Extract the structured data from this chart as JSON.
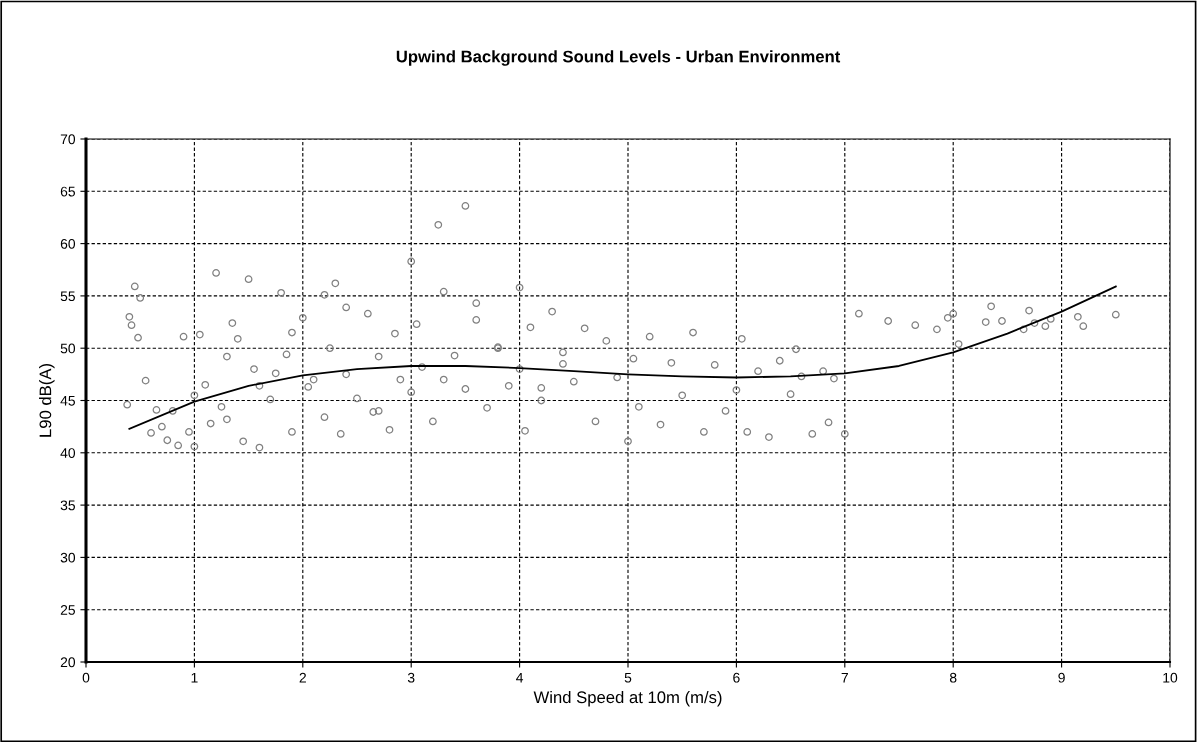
{
  "chart_data": {
    "type": "scatter",
    "title": "Upwind Background Sound Levels - Urban Environment",
    "xlabel": "Wind Speed at 10m (m/s)",
    "ylabel": "L90 dB(A)",
    "xlim": [
      0,
      10
    ],
    "xticks": [
      0,
      1,
      2,
      3,
      4,
      5,
      6,
      7,
      8,
      9,
      10
    ],
    "ylim": [
      20,
      70
    ],
    "yticks": [
      20,
      25,
      30,
      35,
      40,
      45,
      50,
      55,
      60,
      65,
      70
    ],
    "grid": true,
    "legend": false,
    "series": [
      {
        "marker": "circle",
        "color": "#808080",
        "x": [
          0.38,
          0.4,
          0.42,
          0.45,
          0.48,
          0.5,
          0.55,
          0.6,
          0.65,
          0.7,
          0.75,
          0.8,
          0.85,
          0.9,
          0.95,
          1.0,
          1.05,
          1.1,
          1.15,
          1.2,
          1.25,
          1.3,
          1.35,
          1.4,
          1.45,
          1.5,
          1.55,
          1.6,
          1.7,
          1.75,
          1.8,
          1.85,
          1.9,
          2.0,
          2.05,
          2.1,
          2.2,
          2.25,
          2.3,
          2.35,
          2.4,
          2.5,
          2.6,
          2.65,
          2.7,
          2.8,
          2.85,
          2.9,
          3.0,
          3.0,
          3.05,
          3.1,
          3.2,
          3.25,
          3.3,
          3.4,
          3.5,
          3.5,
          3.6,
          3.7,
          3.8,
          3.9,
          4.0,
          4.0,
          4.05,
          4.1,
          4.2,
          4.3,
          4.4,
          4.5,
          4.6,
          4.7,
          4.8,
          4.9,
          5.0,
          5.05,
          5.1,
          5.2,
          5.3,
          5.4,
          5.5,
          5.6,
          5.7,
          5.8,
          5.9,
          6.0,
          6.05,
          6.1,
          6.2,
          6.3,
          6.4,
          6.5,
          6.55,
          6.6,
          6.7,
          6.8,
          6.85,
          6.9,
          7.0,
          1.0,
          1.3,
          1.6,
          2.2,
          2.7,
          3.3,
          3.8,
          4.4,
          4.2,
          3.6,
          2.4,
          1.9,
          7.13,
          7.4,
          7.65,
          7.85,
          7.95,
          8.0,
          8.3,
          8.35,
          8.45,
          8.65,
          8.7,
          8.75,
          8.85,
          8.9,
          9.15,
          9.2,
          9.5,
          8.05
        ],
        "values": [
          44.6,
          53.0,
          52.2,
          55.9,
          51.0,
          54.8,
          46.9,
          41.9,
          44.1,
          42.5,
          41.2,
          44.0,
          40.7,
          51.1,
          42.0,
          40.6,
          51.3,
          46.5,
          42.8,
          57.2,
          44.4,
          43.2,
          52.4,
          50.9,
          41.1,
          56.6,
          48.0,
          40.5,
          45.1,
          47.6,
          55.3,
          49.4,
          42.0,
          52.9,
          46.3,
          47.0,
          55.1,
          50.0,
          56.2,
          41.8,
          47.5,
          45.2,
          53.3,
          43.9,
          49.2,
          42.2,
          51.4,
          47.0,
          58.3,
          45.8,
          52.3,
          48.2,
          43.0,
          61.8,
          55.4,
          49.3,
          63.6,
          46.1,
          52.7,
          44.3,
          50.1,
          46.4,
          55.8,
          48.0,
          42.1,
          52.0,
          45.0,
          53.5,
          49.6,
          46.8,
          51.9,
          43.0,
          50.7,
          47.2,
          41.1,
          49.0,
          44.4,
          51.1,
          42.7,
          48.6,
          45.5,
          51.5,
          42.0,
          48.4,
          44.0,
          46.0,
          50.9,
          42.0,
          47.8,
          41.5,
          48.8,
          45.6,
          49.9,
          47.3,
          41.8,
          47.8,
          42.9,
          47.1,
          41.8,
          45.5,
          49.2,
          46.4,
          43.4,
          44.0,
          47.0,
          50.0,
          48.5,
          46.2,
          54.3,
          53.9,
          51.5,
          53.3,
          52.6,
          52.2,
          51.8,
          52.9,
          53.3,
          52.5,
          54.0,
          52.6,
          51.8,
          53.6,
          52.4,
          52.1,
          52.8,
          53.0,
          52.1,
          53.2,
          50.4
        ]
      },
      {
        "type": "line",
        "color": "#000000",
        "marker": "none",
        "x": [
          0.4,
          1.0,
          1.5,
          2.0,
          2.5,
          3.0,
          3.5,
          4.0,
          4.5,
          5.0,
          5.5,
          6.0,
          6.5,
          7.0,
          7.5,
          8.0,
          8.5,
          9.0,
          9.5
        ],
        "values": [
          42.3,
          44.9,
          46.4,
          47.4,
          48.0,
          48.3,
          48.3,
          48.1,
          47.8,
          47.5,
          47.3,
          47.2,
          47.3,
          47.6,
          48.3,
          49.6,
          51.4,
          53.5,
          55.9
        ]
      }
    ]
  }
}
